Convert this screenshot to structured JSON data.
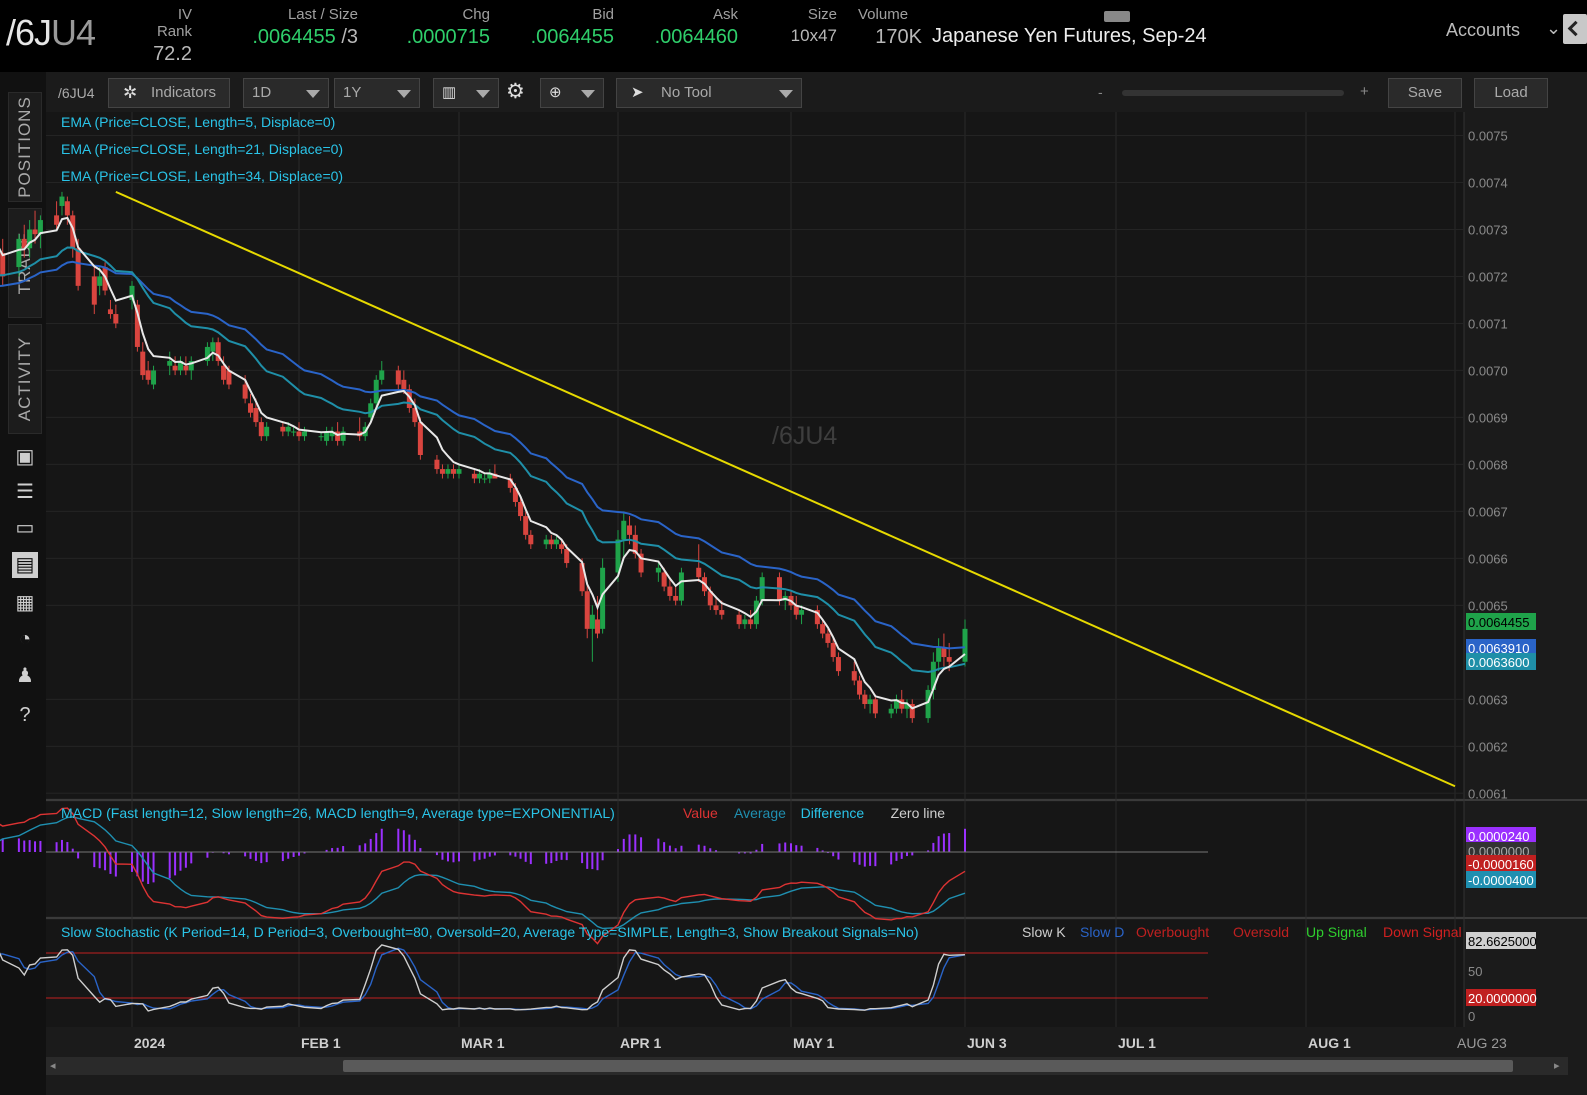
{
  "quote": {
    "symbol_main": "/6J",
    "symbol_sub": "U4",
    "iv_rank_label": "IV Rank",
    "iv_rank": "72.2",
    "last_size_label": "Last / Size",
    "last": ".0064455",
    "size_last": "/3",
    "chg_label": "Chg",
    "chg": ".0000715",
    "bid_label": "Bid",
    "bid": ".0064455",
    "ask_label": "Ask",
    "ask": ".0064460",
    "size_label": "Size",
    "size": "10x47",
    "volume_label": "Volume",
    "volume": "170K",
    "description": "Japanese Yen Futures, Sep-24",
    "accounts_label": "Accounts"
  },
  "rail": {
    "tabs": [
      "POSITIONS",
      "TRADE",
      "ACTIVITY"
    ],
    "icons": [
      "monitor-icon",
      "list-icon",
      "tv-icon",
      "chart-icon",
      "grid-icon",
      "gauge-icon",
      "people-icon",
      "help-icon"
    ]
  },
  "toolbar": {
    "symbol": "/6JU4",
    "indicators_label": "Indicators",
    "aggregation": "1D",
    "timeframe": "1Y",
    "drawing_tool": "No Tool",
    "zoom_minus": "-",
    "zoom_plus": "+",
    "save_label": "Save",
    "load_label": "Load",
    "zoom_level": 0.18
  },
  "colors": {
    "up_candle": "#1fa34a",
    "down_candle": "#d9453f",
    "ema5": "#e8e8e8",
    "ema21": "#1f8fa8",
    "ema34": "#2a64c8",
    "trendline": "#e6d900",
    "macd_value": "#d33",
    "macd_avg": "#1f8fb0",
    "macd_diff": "#9b30ff",
    "label_text": "#2ac4e8"
  },
  "chart_data": [
    {
      "type": "candlestick",
      "title": "/6JU4",
      "studies": [
        "EMA (Price=CLOSE, Length=5, Displace=0)",
        "EMA (Price=CLOSE, Length=21, Displace=0)",
        "EMA (Price=CLOSE, Length=34, Displace=0)"
      ],
      "x_ticks": [
        "2024",
        "FEB 1",
        "MAR 1",
        "APR 1",
        "MAY 1",
        "JUN 3",
        "JUL 1",
        "AUG 1",
        "AUG 23"
      ],
      "y_ticks": [
        "0.0075",
        "0.0074",
        "0.0073",
        "0.0072",
        "0.0071",
        "0.0070",
        "0.0069",
        "0.0068",
        "0.0067",
        "0.0066",
        "0.0065",
        "0.0063",
        "0.0062",
        "0.0061"
      ],
      "ylim": [
        0.00609,
        0.00755
      ],
      "price_labels": {
        "last": "0.0064455",
        "ema_a": "0.0063910",
        "ema_b": "0.0063600"
      },
      "trendline": {
        "from": [
          "2023-12-29",
          0.00738
        ],
        "to": [
          "2024-08-23",
          0.006115
        ]
      },
      "start_date": "2023-12-04",
      "candles": [
        [
          0.00716,
          0.00717,
          0.00712,
          0.00715
        ],
        [
          0.00723,
          0.00727,
          0.00721,
          0.00724
        ],
        [
          0.00733,
          0.00736,
          0.0073,
          0.00735
        ],
        [
          0.00735,
          0.00737,
          0.00731,
          0.00733
        ],
        [
          0.00725,
          0.00728,
          0.00718,
          0.0072
        ],
        [
          0.00722,
          0.00729,
          0.0072,
          0.00728
        ],
        [
          0.00728,
          0.00731,
          0.00724,
          0.00726
        ],
        [
          0.00726,
          0.00732,
          0.00724,
          0.0073
        ],
        [
          0.0073,
          0.00734,
          0.00727,
          0.00729
        ],
        [
          0.00729,
          0.00733,
          0.00726,
          0.00732
        ],
        [
          0.00733,
          0.00736,
          0.0073,
          0.00731
        ],
        [
          0.00735,
          0.00738,
          0.00733,
          0.00737
        ],
        [
          0.00736,
          0.00737,
          0.00731,
          0.00733
        ],
        [
          0.00733,
          0.00734,
          0.00724,
          0.00726
        ],
        [
          0.00726,
          0.00728,
          0.00717,
          0.00718
        ],
        [
          0.0072,
          0.00722,
          0.00712,
          0.00714
        ],
        [
          0.00718,
          0.00722,
          0.00716,
          0.0072
        ],
        [
          0.00722,
          0.00723,
          0.00716,
          0.00717
        ],
        [
          0.00713,
          0.00715,
          0.00711,
          0.00712
        ],
        [
          0.00712,
          0.00714,
          0.00709,
          0.0071
        ],
        [
          0.00715,
          0.00719,
          0.00713,
          0.00718
        ],
        [
          0.00714,
          0.00715,
          0.00704,
          0.00705
        ],
        [
          0.00704,
          0.00706,
          0.00698,
          0.00699
        ],
        [
          0.007,
          0.00702,
          0.00697,
          0.00698
        ],
        [
          0.00697,
          0.00701,
          0.00696,
          0.007
        ],
        [
          0.00701,
          0.00704,
          0.00699,
          0.00702
        ],
        [
          0.00701,
          0.00703,
          0.00699,
          0.007
        ],
        [
          0.007,
          0.00703,
          0.00699,
          0.00702
        ],
        [
          0.00701,
          0.00703,
          0.00699,
          0.007
        ],
        [
          0.007,
          0.00703,
          0.00698,
          0.00702
        ],
        [
          0.00702,
          0.00706,
          0.00701,
          0.00705
        ],
        [
          0.00704,
          0.00707,
          0.00702,
          0.00706
        ],
        [
          0.00706,
          0.00707,
          0.00701,
          0.00702
        ],
        [
          0.00701,
          0.00703,
          0.00697,
          0.00698
        ],
        [
          0.007,
          0.00701,
          0.00696,
          0.00697
        ],
        [
          0.00697,
          0.00699,
          0.00693,
          0.00694
        ],
        [
          0.00693,
          0.00695,
          0.0069,
          0.00691
        ],
        [
          0.00692,
          0.00694,
          0.00688,
          0.00689
        ],
        [
          0.00689,
          0.0069,
          0.00685,
          0.00686
        ],
        [
          0.00686,
          0.00689,
          0.00685,
          0.00688
        ],
        [
          0.00688,
          0.00689,
          0.00686,
          0.00687
        ],
        [
          0.00687,
          0.00689,
          0.00686,
          0.00688
        ],
        [
          0.00687,
          0.00688,
          0.00686,
          0.00687
        ],
        [
          0.00687,
          0.00689,
          0.00685,
          0.00686
        ],
        [
          0.00686,
          0.00688,
          0.00685,
          0.00687
        ],
        [
          0.00686,
          0.00687,
          0.00685,
          0.00686
        ],
        [
          0.00685,
          0.00688,
          0.00684,
          0.00687
        ],
        [
          0.00686,
          0.00688,
          0.00685,
          0.00687
        ],
        [
          0.00687,
          0.00689,
          0.00684,
          0.00685
        ],
        [
          0.00685,
          0.00688,
          0.00684,
          0.00687
        ],
        [
          0.00687,
          0.0069,
          0.00685,
          0.00686
        ],
        [
          0.00686,
          0.00689,
          0.00685,
          0.00688
        ],
        [
          0.0069,
          0.00694,
          0.00689,
          0.00693
        ],
        [
          0.00693,
          0.00699,
          0.00692,
          0.00698
        ],
        [
          0.00698,
          0.00702,
          0.00697,
          0.007
        ],
        [
          0.007,
          0.00701,
          0.00696,
          0.00697
        ],
        [
          0.00698,
          0.007,
          0.00695,
          0.00696
        ],
        [
          0.00696,
          0.00697,
          0.00691,
          0.00692
        ],
        [
          0.00692,
          0.00694,
          0.00688,
          0.00689
        ],
        [
          0.00689,
          0.0069,
          0.00681,
          0.00682
        ],
        [
          0.00681,
          0.00682,
          0.00678,
          0.00679
        ],
        [
          0.00679,
          0.0068,
          0.00677,
          0.00678
        ],
        [
          0.00678,
          0.0068,
          0.00677,
          0.00679
        ],
        [
          0.00679,
          0.0068,
          0.00677,
          0.00678
        ],
        [
          0.00678,
          0.0068,
          0.00677,
          0.00679
        ],
        [
          0.00678,
          0.00679,
          0.00676,
          0.00677
        ],
        [
          0.00677,
          0.00679,
          0.00676,
          0.00678
        ],
        [
          0.00677,
          0.00678,
          0.00676,
          0.00677
        ],
        [
          0.00677,
          0.00679,
          0.00676,
          0.00678
        ],
        [
          0.00678,
          0.0068,
          0.00677,
          0.00677
        ],
        [
          0.00677,
          0.00678,
          0.00674,
          0.00675
        ],
        [
          0.00675,
          0.00676,
          0.00671,
          0.00672
        ],
        [
          0.00672,
          0.00673,
          0.00668,
          0.00669
        ],
        [
          0.00669,
          0.0067,
          0.00664,
          0.00665
        ],
        [
          0.00665,
          0.00666,
          0.00662,
          0.00663
        ],
        [
          0.00663,
          0.00665,
          0.00662,
          0.00664
        ],
        [
          0.00664,
          0.00665,
          0.00662,
          0.00663
        ],
        [
          0.00663,
          0.00665,
          0.00662,
          0.00664
        ],
        [
          0.00663,
          0.00664,
          0.00661,
          0.00662
        ],
        [
          0.00662,
          0.00663,
          0.00658,
          0.00659
        ],
        [
          0.00659,
          0.0066,
          0.00652,
          0.00653
        ],
        [
          0.00653,
          0.00655,
          0.00643,
          0.00645
        ],
        [
          0.00645,
          0.0065,
          0.00638,
          0.00648
        ],
        [
          0.00647,
          0.00652,
          0.00643,
          0.00644
        ],
        [
          0.00645,
          0.0066,
          0.00644,
          0.00658
        ],
        [
          0.00657,
          0.00666,
          0.00655,
          0.00664
        ],
        [
          0.00664,
          0.0067,
          0.0066,
          0.00668
        ],
        [
          0.00667,
          0.00669,
          0.00663,
          0.00665
        ],
        [
          0.00665,
          0.00667,
          0.0066,
          0.00661
        ],
        [
          0.00661,
          0.00662,
          0.00656,
          0.00657
        ],
        [
          0.00657,
          0.00659,
          0.00655,
          0.00658
        ],
        [
          0.00657,
          0.00658,
          0.00653,
          0.00654
        ],
        [
          0.00654,
          0.00656,
          0.00651,
          0.00652
        ],
        [
          0.00652,
          0.00654,
          0.0065,
          0.00651
        ],
        [
          0.00651,
          0.00658,
          0.0065,
          0.00657
        ],
        [
          0.00658,
          0.00663,
          0.00655,
          0.00656
        ],
        [
          0.00656,
          0.00657,
          0.00652,
          0.00653
        ],
        [
          0.00653,
          0.00654,
          0.00649,
          0.0065
        ],
        [
          0.0065,
          0.00652,
          0.00648,
          0.00649
        ],
        [
          0.00649,
          0.00651,
          0.00647,
          0.00648
        ],
        [
          0.00648,
          0.00649,
          0.00645,
          0.00646
        ],
        [
          0.00646,
          0.00648,
          0.00645,
          0.00647
        ],
        [
          0.00647,
          0.00649,
          0.00645,
          0.00646
        ],
        [
          0.00646,
          0.00652,
          0.00645,
          0.00651
        ],
        [
          0.00651,
          0.00657,
          0.0065,
          0.00656
        ],
        [
          0.00656,
          0.00657,
          0.0065,
          0.00651
        ],
        [
          0.00651,
          0.00653,
          0.00649,
          0.00652
        ],
        [
          0.00652,
          0.00653,
          0.00649,
          0.0065
        ],
        [
          0.0065,
          0.00652,
          0.00647,
          0.00648
        ],
        [
          0.00648,
          0.0065,
          0.00646,
          0.00649
        ],
        [
          0.00649,
          0.0065,
          0.00645,
          0.00646
        ],
        [
          0.00646,
          0.00647,
          0.00643,
          0.00644
        ],
        [
          0.00644,
          0.00645,
          0.00641,
          0.00642
        ],
        [
          0.00642,
          0.00643,
          0.00638,
          0.00639
        ],
        [
          0.00639,
          0.0064,
          0.00635,
          0.00636
        ],
        [
          0.00636,
          0.00638,
          0.00633,
          0.00634
        ],
        [
          0.00634,
          0.00635,
          0.0063,
          0.00631
        ],
        [
          0.00631,
          0.00632,
          0.00628,
          0.00629
        ],
        [
          0.00629,
          0.00631,
          0.00627,
          0.0063
        ],
        [
          0.0063,
          0.00631,
          0.00626,
          0.00627
        ],
        [
          0.00627,
          0.00629,
          0.00626,
          0.00628
        ],
        [
          0.00628,
          0.00631,
          0.00627,
          0.0063
        ],
        [
          0.0063,
          0.00632,
          0.00627,
          0.00628
        ],
        [
          0.00628,
          0.0063,
          0.00626,
          0.00629
        ],
        [
          0.00629,
          0.0063,
          0.00625,
          0.00626
        ],
        [
          0.00626,
          0.00633,
          0.00625,
          0.00632
        ],
        [
          0.00632,
          0.0064,
          0.0063,
          0.00638
        ],
        [
          0.00638,
          0.00643,
          0.00636,
          0.00641
        ],
        [
          0.00641,
          0.00644,
          0.00637,
          0.00639
        ],
        [
          0.00639,
          0.00642,
          0.00636,
          0.00638
        ],
        [
          0.00638,
          0.00647,
          0.00637,
          0.00645
        ]
      ]
    },
    {
      "type": "macd",
      "title": "MACD (Fast length=12, Slow length=26, MACD length=9, Average type=EXPONENTIAL)",
      "legend": [
        "Value",
        "Average",
        "Difference",
        "Zero line"
      ],
      "price_labels": [
        "0.0000240",
        "0.0000000",
        "-0.0000160",
        "-0.0000400"
      ]
    },
    {
      "type": "stochastic",
      "title": "Slow Stochastic (K Period=14, D Period=3, Overbought=80, Oversold=20, Average Type=SIMPLE, Length=3, Show Breakout Signals=No)",
      "legend": [
        "Slow K",
        "Slow D",
        "Overbought",
        "Oversold",
        "Up Signal",
        "Down Signal"
      ],
      "y_ticks": [
        "50",
        "0"
      ],
      "price_labels": [
        "82.6625000",
        "20.0000000"
      ],
      "overbought": 80,
      "oversold": 20
    }
  ]
}
